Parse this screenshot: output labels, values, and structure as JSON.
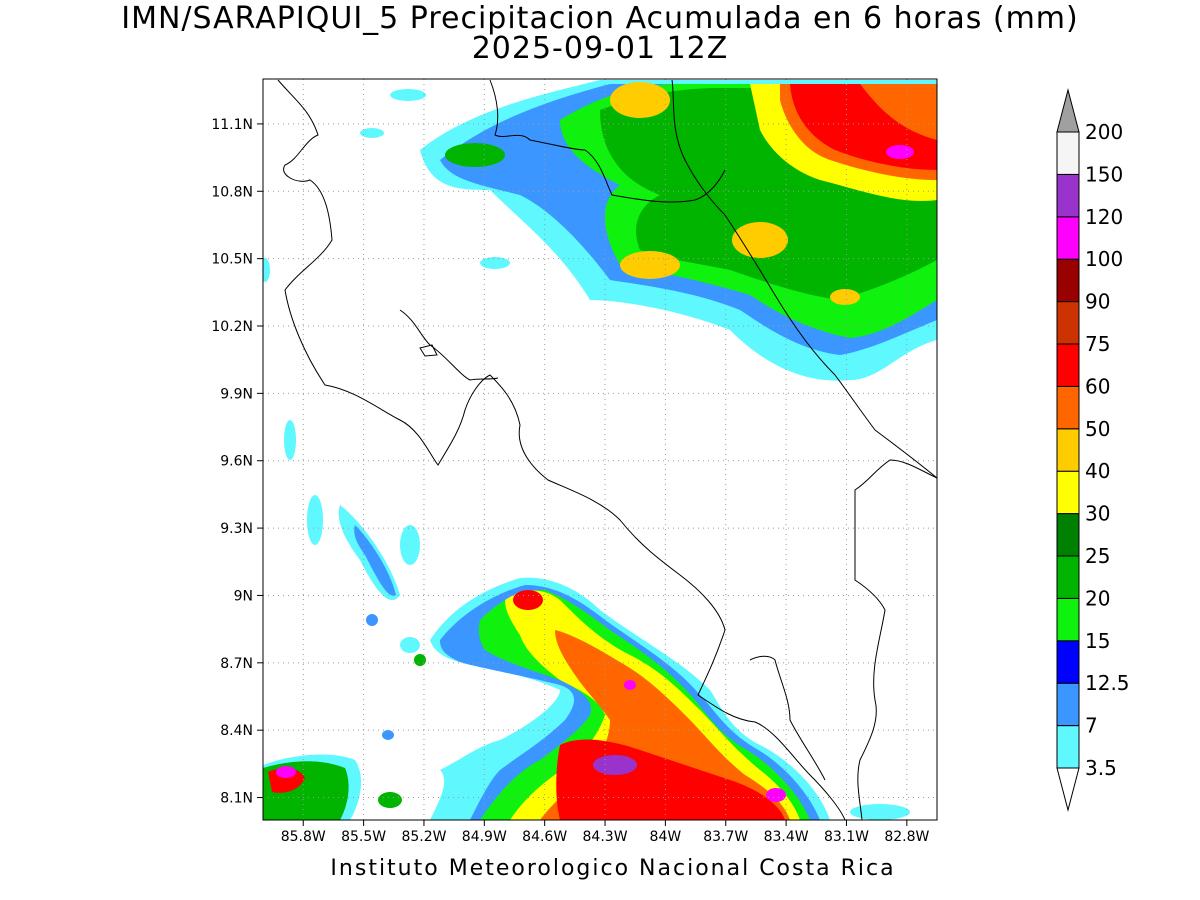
{
  "title": {
    "line1": "IMN/SARAPIQUI_5 Precipitacion Acumulada en 6 horas (mm)",
    "line2": "2025-09-01 12Z"
  },
  "footer": "Instituto Meteorologico Nacional Costa Rica",
  "map": {
    "lon_range": [
      -86.0,
      -82.65
    ],
    "lat_range": [
      8.0,
      11.3
    ],
    "lon_ticks": [
      {
        "value": -85.8,
        "label": "85.8W"
      },
      {
        "value": -85.5,
        "label": "85.5W"
      },
      {
        "value": -85.2,
        "label": "85.2W"
      },
      {
        "value": -84.9,
        "label": "84.9W"
      },
      {
        "value": -84.6,
        "label": "84.6W"
      },
      {
        "value": -84.3,
        "label": "84.3W"
      },
      {
        "value": -84.0,
        "label": "84W"
      },
      {
        "value": -83.7,
        "label": "83.7W"
      },
      {
        "value": -83.4,
        "label": "83.4W"
      },
      {
        "value": -83.1,
        "label": "83.1W"
      },
      {
        "value": -82.8,
        "label": "82.8W"
      }
    ],
    "lat_ticks": [
      {
        "value": 8.1,
        "label": "8.1N"
      },
      {
        "value": 8.4,
        "label": "8.4N"
      },
      {
        "value": 8.7,
        "label": "8.7N"
      },
      {
        "value": 9.0,
        "label": "9N"
      },
      {
        "value": 9.3,
        "label": "9.3N"
      },
      {
        "value": 9.6,
        "label": "9.6N"
      },
      {
        "value": 9.9,
        "label": "9.9N"
      },
      {
        "value": 10.2,
        "label": "10.2N"
      },
      {
        "value": 10.5,
        "label": "10.5N"
      },
      {
        "value": 10.8,
        "label": "10.8N"
      },
      {
        "value": 11.1,
        "label": "11.1N"
      }
    ],
    "grid": true
  },
  "colorbar": {
    "labels": [
      "3.5",
      "7",
      "12.5",
      "15",
      "20",
      "25",
      "30",
      "40",
      "50",
      "60",
      "75",
      "90",
      "100",
      "120",
      "150",
      "200"
    ],
    "colors": [
      "#5ff8ff",
      "#3c96ff",
      "#0000ff",
      "#0ef20e",
      "#00b400",
      "#008000",
      "#ffff00",
      "#ffcc00",
      "#ff6600",
      "#ff0000",
      "#cc3300",
      "#990000",
      "#ff00ff",
      "#9933cc",
      "#f5f5f5"
    ],
    "over_color": "#a0a0a0",
    "under_color": "#ffffff"
  }
}
